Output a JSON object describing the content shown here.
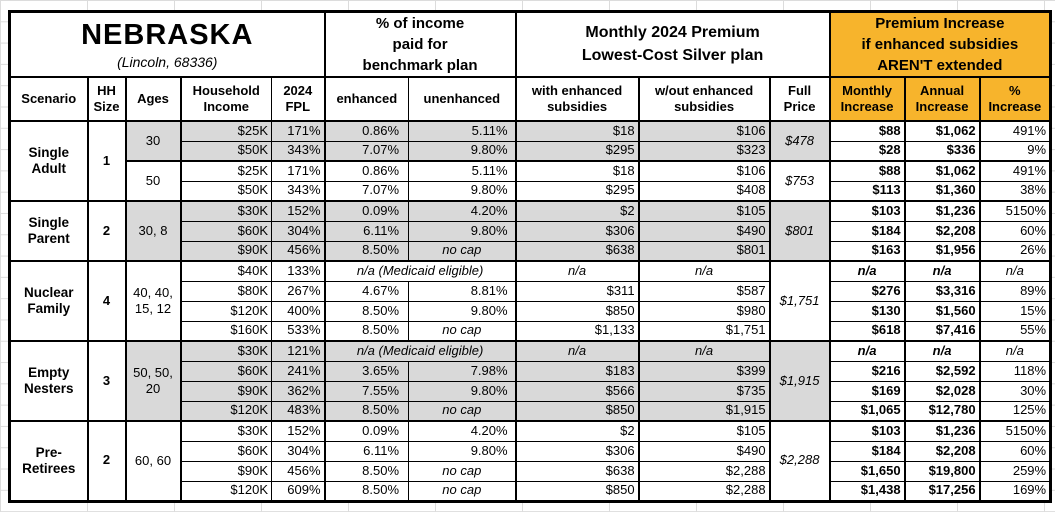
{
  "colors": {
    "header_accent": "#F7B42C",
    "row_shade": "#D9D9D9",
    "border": "#000000"
  },
  "chart_data": {
    "type": "table",
    "title": "NEBRASKA",
    "subtitle": "(Lincoln, 68336)",
    "group_headers": {
      "benchmark": "% of income\npaid for\nbenchmark plan",
      "premium": "Monthly 2024 Premium\nLowest-Cost Silver plan",
      "increase": "Premium Increase\nif enhanced subsidies\nAREN'T extended"
    },
    "columns": [
      {
        "key": "scenario",
        "label": "Scenario"
      },
      {
        "key": "hh",
        "label": "HH\nSize"
      },
      {
        "key": "ages",
        "label": "Ages"
      },
      {
        "key": "income",
        "label": "Household\nIncome"
      },
      {
        "key": "fpl",
        "label": "2024\nFPL"
      },
      {
        "key": "enhanced",
        "label": "enhanced"
      },
      {
        "key": "unenhanced",
        "label": "unenhanced"
      },
      {
        "key": "with_sub",
        "label": "with enhanced\nsubsidies"
      },
      {
        "key": "wout_sub",
        "label": "w/out enhanced\nsubsidies"
      },
      {
        "key": "full",
        "label": "Full\nPrice"
      },
      {
        "key": "monthly",
        "label": "Monthly\nIncrease"
      },
      {
        "key": "annual",
        "label": "Annual\nIncrease"
      },
      {
        "key": "pct",
        "label": "%\nIncrease"
      }
    ],
    "na_label": "n/a",
    "no_cap_label": "no cap",
    "medicaid_label": "n/a (Medicaid eligible)",
    "scenarios": [
      {
        "name": "Single Adult",
        "hh_size": "1",
        "groups": [
          {
            "ages": "30",
            "shaded": true,
            "full_price": "$478",
            "rows": [
              {
                "income": "$25K",
                "fpl": "171%",
                "enhanced": "0.86%",
                "unenhanced": "5.11%",
                "with_sub": "$18",
                "wout_sub": "$106",
                "monthly": "$88",
                "annual": "$1,062",
                "pct": "491%",
                "medicaid": false
              },
              {
                "income": "$50K",
                "fpl": "343%",
                "enhanced": "7.07%",
                "unenhanced": "9.80%",
                "with_sub": "$295",
                "wout_sub": "$323",
                "monthly": "$28",
                "annual": "$336",
                "pct": "9%",
                "medicaid": false
              }
            ]
          },
          {
            "ages": "50",
            "shaded": false,
            "full_price": "$753",
            "rows": [
              {
                "income": "$25K",
                "fpl": "171%",
                "enhanced": "0.86%",
                "unenhanced": "5.11%",
                "with_sub": "$18",
                "wout_sub": "$106",
                "monthly": "$88",
                "annual": "$1,062",
                "pct": "491%",
                "medicaid": false
              },
              {
                "income": "$50K",
                "fpl": "343%",
                "enhanced": "7.07%",
                "unenhanced": "9.80%",
                "with_sub": "$295",
                "wout_sub": "$408",
                "monthly": "$113",
                "annual": "$1,360",
                "pct": "38%",
                "medicaid": false
              }
            ]
          }
        ]
      },
      {
        "name": "Single Parent",
        "hh_size": "2",
        "groups": [
          {
            "ages": "30, 8",
            "shaded": true,
            "full_price": "$801",
            "rows": [
              {
                "income": "$30K",
                "fpl": "152%",
                "enhanced": "0.09%",
                "unenhanced": "4.20%",
                "with_sub": "$2",
                "wout_sub": "$105",
                "monthly": "$103",
                "annual": "$1,236",
                "pct": "5150%",
                "medicaid": false
              },
              {
                "income": "$60K",
                "fpl": "304%",
                "enhanced": "6.11%",
                "unenhanced": "9.80%",
                "with_sub": "$306",
                "wout_sub": "$490",
                "monthly": "$184",
                "annual": "$2,208",
                "pct": "60%",
                "medicaid": false
              },
              {
                "income": "$90K",
                "fpl": "456%",
                "enhanced": "8.50%",
                "unenhanced": "no cap",
                "with_sub": "$638",
                "wout_sub": "$801",
                "monthly": "$163",
                "annual": "$1,956",
                "pct": "26%",
                "medicaid": false
              }
            ]
          }
        ]
      },
      {
        "name": "Nuclear Family",
        "hh_size": "4",
        "groups": [
          {
            "ages": "40, 40,\n15, 12",
            "shaded": false,
            "full_price": "$1,751",
            "rows": [
              {
                "income": "$40K",
                "fpl": "133%",
                "medicaid": true,
                "with_sub": "n/a",
                "wout_sub": "n/a",
                "monthly": "n/a",
                "annual": "n/a",
                "pct": "n/a"
              },
              {
                "income": "$80K",
                "fpl": "267%",
                "enhanced": "4.67%",
                "unenhanced": "8.81%",
                "with_sub": "$311",
                "wout_sub": "$587",
                "monthly": "$276",
                "annual": "$3,316",
                "pct": "89%",
                "medicaid": false
              },
              {
                "income": "$120K",
                "fpl": "400%",
                "enhanced": "8.50%",
                "unenhanced": "9.80%",
                "with_sub": "$850",
                "wout_sub": "$980",
                "monthly": "$130",
                "annual": "$1,560",
                "pct": "15%",
                "medicaid": false
              },
              {
                "income": "$160K",
                "fpl": "533%",
                "enhanced": "8.50%",
                "unenhanced": "no cap",
                "with_sub": "$1,133",
                "wout_sub": "$1,751",
                "monthly": "$618",
                "annual": "$7,416",
                "pct": "55%",
                "medicaid": false
              }
            ]
          }
        ]
      },
      {
        "name": "Empty Nesters",
        "hh_size": "3",
        "groups": [
          {
            "ages": "50, 50,\n20",
            "shaded": true,
            "full_price": "$1,915",
            "rows": [
              {
                "income": "$30K",
                "fpl": "121%",
                "medicaid": true,
                "with_sub": "n/a",
                "wout_sub": "n/a",
                "monthly": "n/a",
                "annual": "n/a",
                "pct": "n/a"
              },
              {
                "income": "$60K",
                "fpl": "241%",
                "enhanced": "3.65%",
                "unenhanced": "7.98%",
                "with_sub": "$183",
                "wout_sub": "$399",
                "monthly": "$216",
                "annual": "$2,592",
                "pct": "118%",
                "medicaid": false
              },
              {
                "income": "$90K",
                "fpl": "362%",
                "enhanced": "7.55%",
                "unenhanced": "9.80%",
                "with_sub": "$566",
                "wout_sub": "$735",
                "monthly": "$169",
                "annual": "$2,028",
                "pct": "30%",
                "medicaid": false
              },
              {
                "income": "$120K",
                "fpl": "483%",
                "enhanced": "8.50%",
                "unenhanced": "no cap",
                "with_sub": "$850",
                "wout_sub": "$1,915",
                "monthly": "$1,065",
                "annual": "$12,780",
                "pct": "125%",
                "medicaid": false
              }
            ]
          }
        ]
      },
      {
        "name": "Pre-Retirees",
        "hh_size": "2",
        "groups": [
          {
            "ages": "60, 60",
            "shaded": false,
            "full_price": "$2,288",
            "rows": [
              {
                "income": "$30K",
                "fpl": "152%",
                "enhanced": "0.09%",
                "unenhanced": "4.20%",
                "with_sub": "$2",
                "wout_sub": "$105",
                "monthly": "$103",
                "annual": "$1,236",
                "pct": "5150%",
                "medicaid": false
              },
              {
                "income": "$60K",
                "fpl": "304%",
                "enhanced": "6.11%",
                "unenhanced": "9.80%",
                "with_sub": "$306",
                "wout_sub": "$490",
                "monthly": "$184",
                "annual": "$2,208",
                "pct": "60%",
                "medicaid": false
              },
              {
                "income": "$90K",
                "fpl": "456%",
                "enhanced": "8.50%",
                "unenhanced": "no cap",
                "with_sub": "$638",
                "wout_sub": "$2,288",
                "monthly": "$1,650",
                "annual": "$19,800",
                "pct": "259%",
                "medicaid": false
              },
              {
                "income": "$120K",
                "fpl": "609%",
                "enhanced": "8.50%",
                "unenhanced": "no cap",
                "with_sub": "$850",
                "wout_sub": "$2,288",
                "monthly": "$1,438",
                "annual": "$17,256",
                "pct": "169%",
                "medicaid": false
              }
            ]
          }
        ]
      }
    ]
  }
}
